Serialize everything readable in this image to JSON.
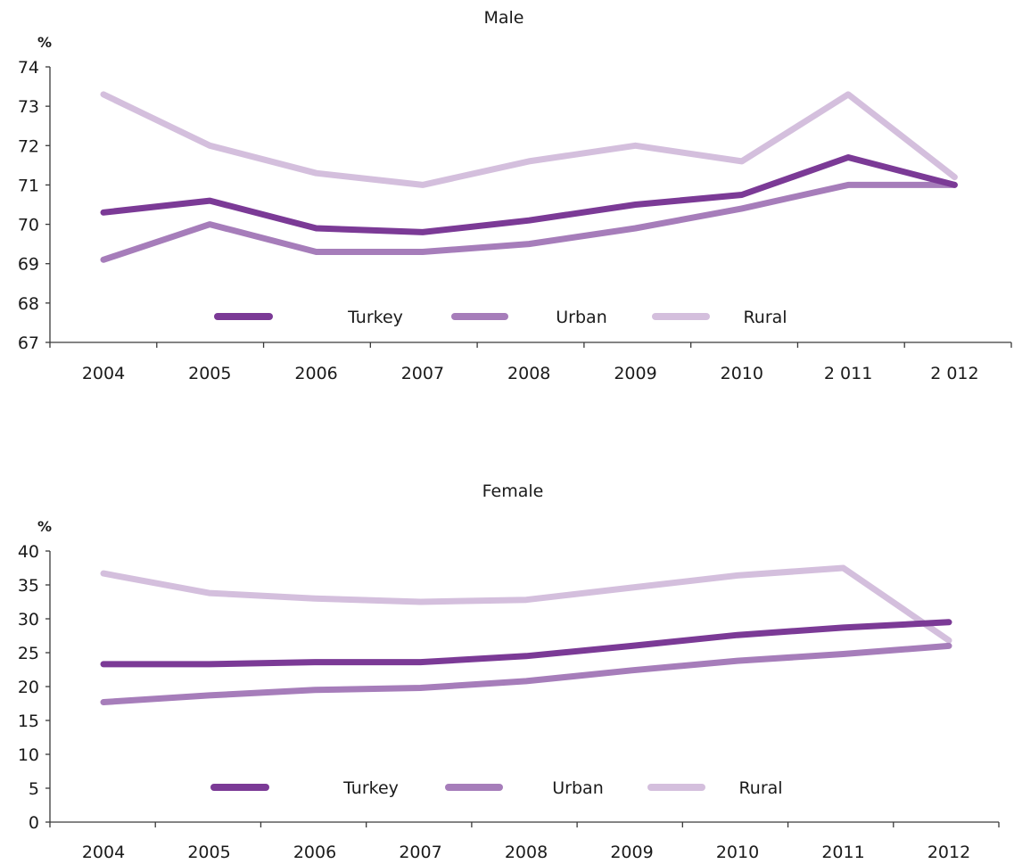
{
  "chart_data": [
    {
      "type": "line",
      "title": "Male",
      "ylabel": "%",
      "xlabel": "",
      "categories": [
        "2004",
        "2005",
        "2006",
        "2007",
        "2008",
        "2009",
        "2010",
        "2 011",
        "2 012"
      ],
      "ylim": [
        67,
        74
      ],
      "yticks": [
        67,
        68,
        69,
        70,
        71,
        72,
        73,
        74
      ],
      "grid": false,
      "legend_position": "bottom",
      "series": [
        {
          "name": "Turkey",
          "color": "#7b3a96",
          "values": [
            70.3,
            70.6,
            69.9,
            69.8,
            70.1,
            70.5,
            70.75,
            71.7,
            71.0
          ]
        },
        {
          "name": "Urban",
          "color": "#a67dba",
          "values": [
            69.1,
            70.0,
            69.3,
            69.3,
            69.5,
            69.9,
            70.4,
            71.0,
            71.0
          ]
        },
        {
          "name": "Rural",
          "color": "#d4bfdd",
          "values": [
            73.3,
            72.0,
            71.3,
            71.0,
            71.6,
            72.0,
            71.6,
            73.3,
            71.2
          ]
        }
      ]
    },
    {
      "type": "line",
      "title": "Female",
      "ylabel": "%",
      "xlabel": "",
      "categories": [
        "2004",
        "2005",
        "2006",
        "2007",
        "2008",
        "2009",
        "2010",
        "2011",
        "2012"
      ],
      "ylim": [
        0,
        40
      ],
      "yticks": [
        0,
        5,
        10,
        15,
        20,
        25,
        30,
        35,
        40
      ],
      "grid": false,
      "legend_position": "bottom",
      "series": [
        {
          "name": "Turkey",
          "color": "#7b3a96",
          "values": [
            23.3,
            23.3,
            23.6,
            23.6,
            24.5,
            26.0,
            27.6,
            28.7,
            29.5
          ]
        },
        {
          "name": "Urban",
          "color": "#a67dba",
          "values": [
            17.7,
            18.7,
            19.5,
            19.8,
            20.8,
            22.4,
            23.8,
            24.8,
            26.0
          ]
        },
        {
          "name": "Rural",
          "color": "#d4bfdd",
          "values": [
            36.7,
            33.8,
            33.0,
            32.5,
            32.8,
            34.6,
            36.4,
            37.5,
            26.8
          ]
        }
      ]
    }
  ]
}
